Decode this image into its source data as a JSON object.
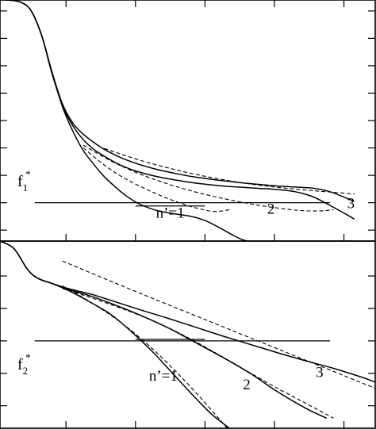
{
  "chart_data": [
    {
      "type": "line",
      "title": "",
      "xlabel": "",
      "ylabel": "",
      "threshold_label": {
        "main": "f",
        "sub": "1",
        "sup": "*"
      },
      "grid": false,
      "legend": "none",
      "series": [
        {
          "name": "n'=1",
          "style": "solid",
          "x": [
            0,
            0.1,
            0.3,
            0.45,
            0.6,
            0.75,
            0.9,
            1.05,
            1.2,
            1.35,
            1.5,
            1.65,
            1.8,
            2.0,
            2.25,
            2.5,
            2.75,
            2.95,
            3.15,
            3.35,
            3.5,
            3.6,
            3.75,
            3.9,
            4.1,
            4.5,
            5.1
          ],
          "y": [
            8.8,
            8.8,
            8.72,
            8.4,
            7.5,
            6.15,
            4.9,
            4.0,
            3.3,
            2.8,
            2.35,
            2.0,
            1.68,
            1.36,
            1.12,
            1.0,
            0.9,
            0.75,
            0.5,
            0.22,
            0.04,
            0,
            0,
            0,
            0,
            0,
            0
          ]
        },
        {
          "name": "2",
          "style": "solid",
          "x": [
            0,
            0.1,
            0.3,
            0.45,
            0.6,
            0.75,
            0.9,
            1.05,
            1.2,
            1.35,
            1.5,
            1.65,
            1.8,
            2.0,
            2.25,
            2.5,
            2.75,
            3.0,
            3.25,
            3.5,
            3.75,
            4.0,
            4.25,
            4.5,
            4.75,
            5.0,
            5.1
          ],
          "y": [
            8.8,
            8.8,
            8.72,
            8.4,
            7.5,
            6.1,
            4.95,
            4.2,
            3.7,
            3.35,
            3.1,
            2.88,
            2.7,
            2.52,
            2.36,
            2.24,
            2.14,
            2.06,
            2.0,
            1.96,
            1.92,
            1.88,
            1.8,
            1.62,
            1.3,
            0.95,
            0.8
          ]
        },
        {
          "name": "3",
          "style": "solid",
          "x": [
            0,
            0.1,
            0.3,
            0.45,
            0.6,
            0.75,
            0.9,
            1.05,
            1.2,
            1.35,
            1.5,
            1.65,
            1.8,
            2.0,
            2.25,
            2.5,
            2.75,
            3.0,
            3.25,
            3.5,
            3.75,
            4.0,
            4.25,
            4.5,
            4.75,
            5.0,
            5.1
          ],
          "y": [
            8.8,
            8.8,
            8.72,
            8.4,
            7.5,
            6.15,
            5.0,
            4.3,
            3.9,
            3.6,
            3.35,
            3.15,
            2.98,
            2.8,
            2.62,
            2.48,
            2.36,
            2.27,
            2.19,
            2.12,
            2.06,
            2.01,
            1.97,
            1.93,
            1.8,
            1.55,
            1.45
          ]
        },
        {
          "name": "",
          "style": "dashed",
          "x": [
            1.2,
            1.5,
            1.8,
            2.2,
            2.6,
            2.9,
            3.1,
            3.3
          ],
          "y": [
            3.4,
            2.78,
            2.28,
            1.78,
            1.38,
            1.16,
            1.08,
            1.14
          ]
        },
        {
          "name": "",
          "style": "dashed",
          "x": [
            1.2,
            1.6,
            2.0,
            2.4,
            2.8,
            3.2,
            3.6,
            3.9,
            4.3,
            4.6,
            4.8
          ],
          "y": [
            3.5,
            2.92,
            2.46,
            2.1,
            1.8,
            1.56,
            1.36,
            1.24,
            1.12,
            1.1,
            1.14
          ]
        },
        {
          "name": "",
          "style": "dashed",
          "x": [
            1.5,
            2.0,
            2.5,
            3.0,
            3.5,
            4.0,
            4.5,
            5.0,
            5.1
          ],
          "y": [
            3.38,
            2.96,
            2.62,
            2.34,
            2.12,
            1.96,
            1.84,
            1.74,
            1.72
          ]
        }
      ],
      "hlines": [
        {
          "y": 1.4,
          "x0": 0.5,
          "x1": 4.75
        },
        {
          "y": 1.28,
          "x0": 1.95,
          "x1": 2.95
        }
      ],
      "annotations": [
        {
          "text": "n’=1",
          "x": 2.45,
          "y": 0.85
        },
        {
          "text": "2",
          "x": 3.9,
          "y": 1.0
        },
        {
          "text": "3",
          "x": 5.05,
          "y": 1.2
        }
      ],
      "xlim": [
        0,
        5.4
      ],
      "ylim": [
        0,
        8.8
      ]
    },
    {
      "type": "line",
      "title": "",
      "xlabel": "",
      "ylabel": "",
      "threshold_label": {
        "main": "f",
        "sub": "2",
        "sup": "*"
      },
      "grid": false,
      "legend": "none",
      "series": [
        {
          "name": "n'=1",
          "style": "solid",
          "x": [
            0,
            0.2,
            0.4,
            0.55,
            0.75,
            1.0,
            1.3,
            1.6,
            1.9,
            2.2,
            2.5,
            2.8,
            3.05,
            3.3
          ],
          "y": [
            7.0,
            6.7,
            5.85,
            5.5,
            5.3,
            5.0,
            4.55,
            4.05,
            3.35,
            2.55,
            1.65,
            0.75,
            0.05,
            -0.5
          ]
        },
        {
          "name": "2",
          "style": "solid",
          "x": [
            0,
            0.2,
            0.4,
            0.55,
            0.75,
            1.0,
            1.3,
            1.6,
            2.0,
            2.4,
            2.8,
            3.2,
            3.6,
            4.0,
            4.4,
            4.7
          ],
          "y": [
            7.0,
            6.7,
            5.85,
            5.5,
            5.3,
            5.05,
            4.8,
            4.5,
            4.05,
            3.55,
            2.95,
            2.35,
            1.7,
            0.95,
            0.3,
            -0.1
          ]
        },
        {
          "name": "3",
          "style": "solid",
          "x": [
            0,
            0.2,
            0.4,
            0.55,
            0.75,
            1.0,
            1.3,
            1.6,
            2.0,
            2.4,
            2.8,
            3.2,
            3.6,
            4.0,
            4.4,
            4.8,
            5.2,
            5.4
          ],
          "y": [
            7.0,
            6.7,
            5.85,
            5.5,
            5.3,
            5.08,
            4.88,
            4.62,
            4.26,
            3.92,
            3.56,
            3.2,
            2.86,
            2.52,
            2.2,
            1.9,
            1.55,
            1.35
          ]
        },
        {
          "name": "",
          "style": "dashed",
          "x": [
            0.9,
            1.3,
            1.7,
            2.1,
            2.5,
            2.9,
            3.3
          ],
          "y": [
            5.2,
            4.56,
            3.82,
            2.92,
            1.86,
            0.68,
            -0.6
          ]
        },
        {
          "name": "",
          "style": "dashed",
          "x": [
            0.9,
            1.5,
            2.1,
            2.7,
            3.3,
            3.9,
            4.4,
            4.8
          ],
          "y": [
            5.1,
            4.55,
            3.92,
            3.14,
            2.2,
            1.24,
            0.5,
            -0.1
          ]
        },
        {
          "name": "",
          "style": "dashed",
          "x": [
            0.9,
            1.5,
            2.2,
            3.0,
            3.8,
            4.6,
            5.4
          ],
          "y": [
            6.2,
            5.5,
            4.7,
            3.8,
            2.9,
            2.0,
            1.1
          ]
        }
      ],
      "hlines": [
        {
          "y": 3.0,
          "x0": 0.5,
          "x1": 4.75
        },
        {
          "y": 3.06,
          "x0": 1.95,
          "x1": 2.95
        }
      ],
      "annotations": [
        {
          "text": "n’=1",
          "x": 2.35,
          "y": 1.4
        },
        {
          "text": "2",
          "x": 3.55,
          "y": 1.05
        },
        {
          "text": "3",
          "x": 4.6,
          "y": 1.55
        }
      ],
      "xlim": [
        0,
        5.4
      ],
      "ylim": [
        -0.5,
        7.0
      ]
    }
  ]
}
